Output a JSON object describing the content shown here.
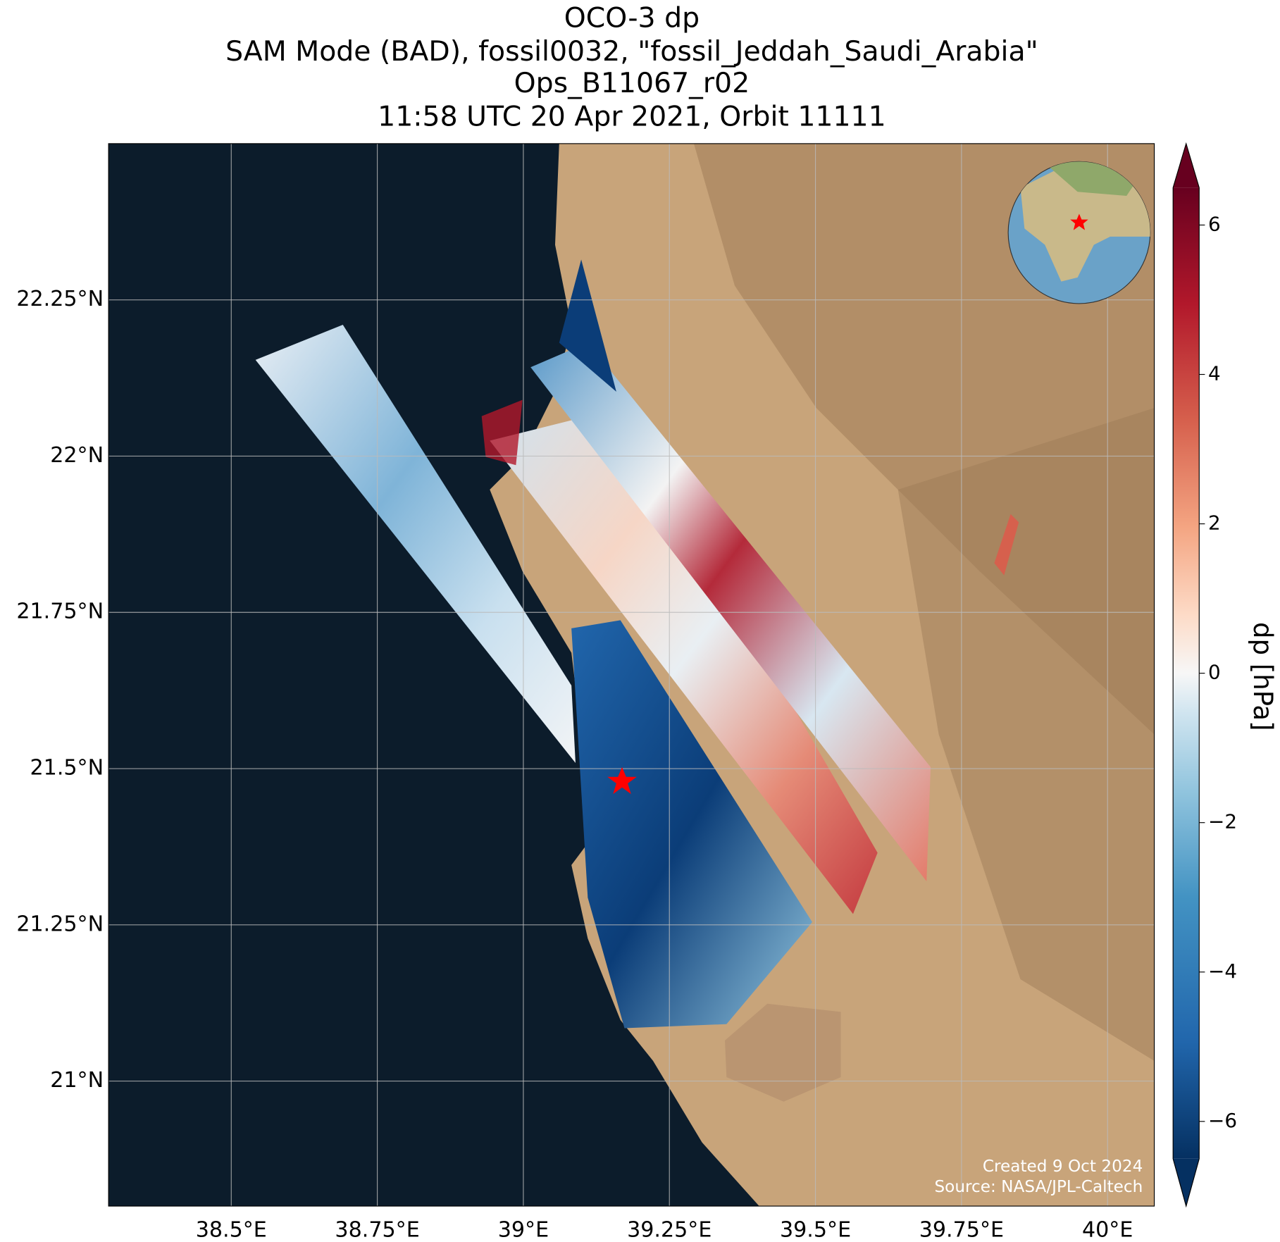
{
  "title": [
    "OCO-3 dp",
    "SAM Mode (BAD), fossil0032, \"fossil_Jeddah_Saudi_Arabia\"",
    "Ops_B11067_r02",
    "11:58 UTC 20 Apr 2021, Orbit 11111"
  ],
  "map": {
    "xlim": [
      38.29,
      40.08
    ],
    "ylim": [
      20.8,
      22.5
    ],
    "grid": true,
    "xticks": [
      {
        "value": 38.5,
        "label": "38.5°E"
      },
      {
        "value": 38.75,
        "label": "38.75°E"
      },
      {
        "value": 39,
        "label": "39°E"
      },
      {
        "value": 39.25,
        "label": "39.25°E"
      },
      {
        "value": 39.5,
        "label": "39.5°E"
      },
      {
        "value": 39.75,
        "label": "39.75°E"
      },
      {
        "value": 40,
        "label": "40°E"
      }
    ],
    "yticks": [
      {
        "value": 21,
        "label": "21°N"
      },
      {
        "value": 21.25,
        "label": "21.25°N"
      },
      {
        "value": 21.5,
        "label": "21.5°N"
      },
      {
        "value": 21.75,
        "label": "21.75°N"
      },
      {
        "value": 22,
        "label": "22°N"
      },
      {
        "value": 22.25,
        "label": "22.25°N"
      }
    ]
  },
  "colorbar": {
    "label": "dp [hPa]",
    "clim": [
      -6.5,
      6.5
    ],
    "ticks": [
      {
        "value": -6,
        "label": "−6"
      },
      {
        "value": -4,
        "label": "−4"
      },
      {
        "value": -2,
        "label": "−2"
      },
      0,
      2,
      4,
      6
    ]
  },
  "credits": [
    "Created 9 Oct 2024",
    "Source: NASA/JPL-Caltech"
  ]
}
